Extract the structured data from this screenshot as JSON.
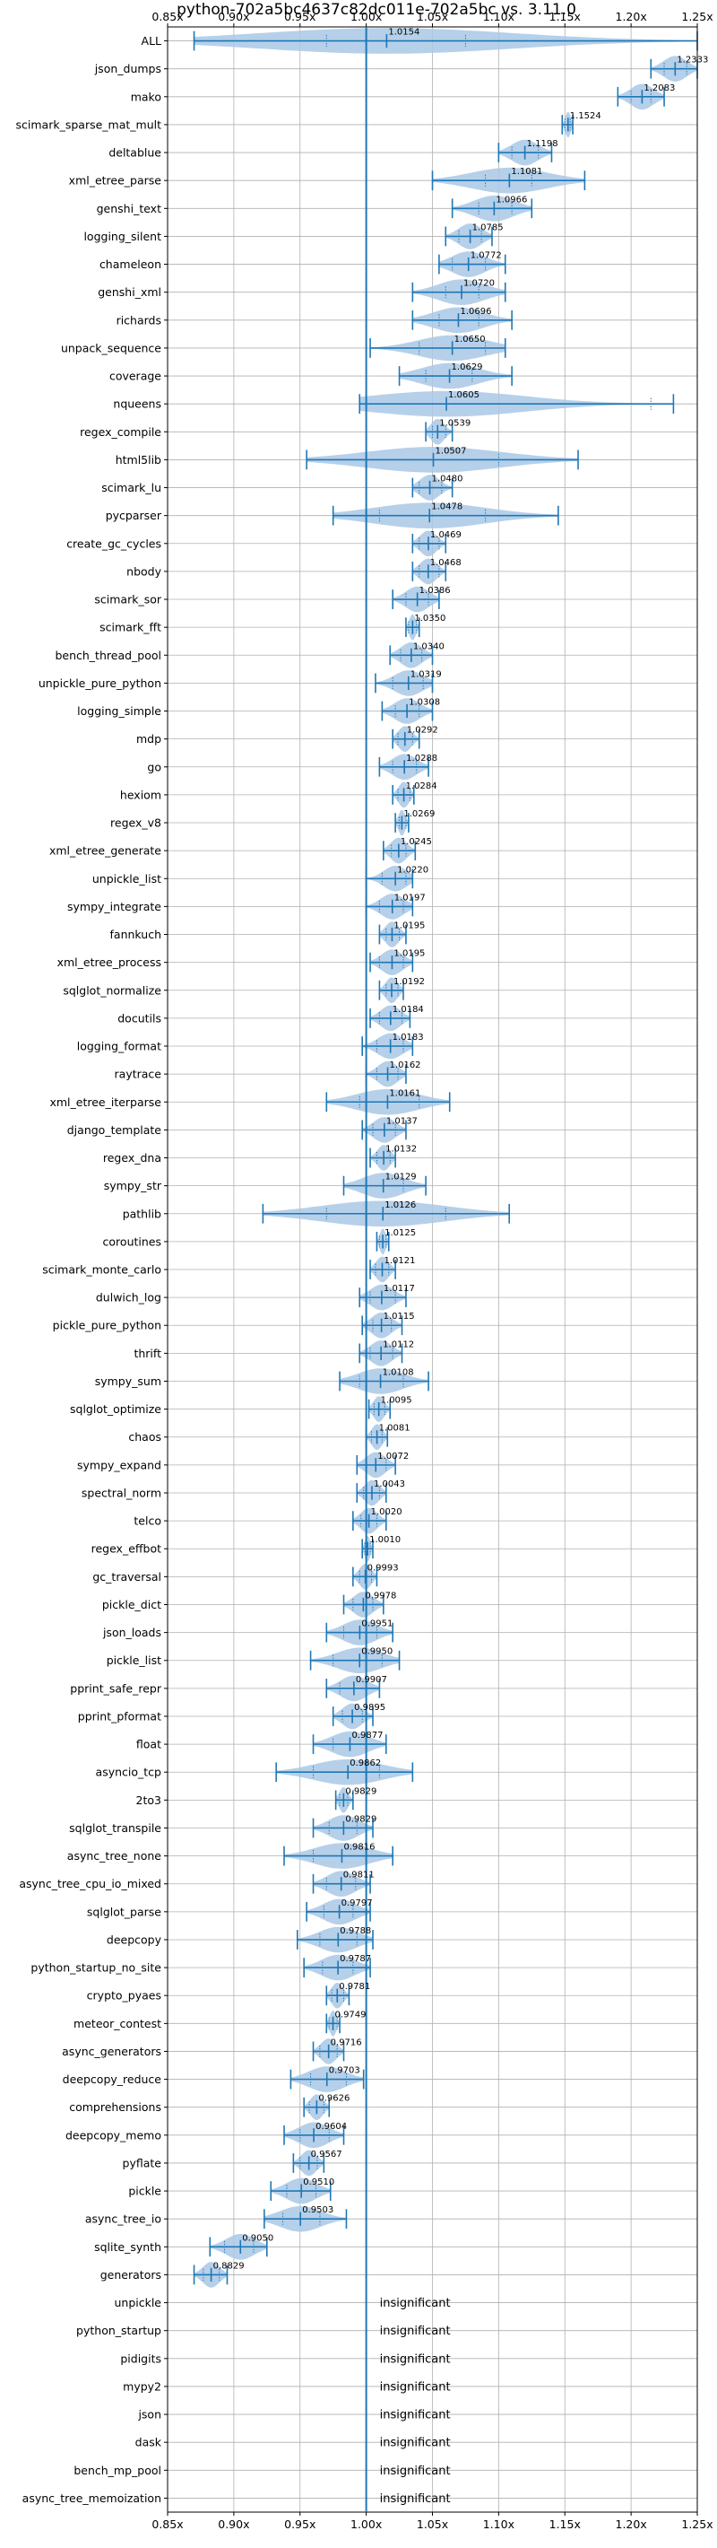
{
  "chart_data": {
    "type": "violin",
    "title": "python-702a5bc4637c82dc011e-702a5bc vs. 3.11.0",
    "xlim": [
      0.85,
      1.25
    ],
    "x_ticks": [
      "0.85x",
      "0.90x",
      "0.95x",
      "1.00x",
      "1.05x",
      "1.10x",
      "1.15x",
      "1.20x",
      "1.25x"
    ],
    "x_tick_values": [
      0.85,
      0.9,
      0.95,
      1.0,
      1.05,
      1.1,
      1.15,
      1.2,
      1.25
    ],
    "reference_line": 1.0,
    "grid": true,
    "color": "#1f77b4",
    "violin_color": "#a9c8e6",
    "insignificant_label": "insignificant",
    "benchmarks": [
      {
        "name": "ALL",
        "label": "1.0154",
        "value": 1.0154,
        "min": 0.87,
        "max": 1.25,
        "q1": 0.97,
        "q3": 1.075
      },
      {
        "name": "json_dumps",
        "label": "1.2333",
        "value": 1.2333,
        "min": 1.215,
        "max": 1.25,
        "q1": 1.225,
        "q3": 1.242
      },
      {
        "name": "mako",
        "label": "1.2083",
        "value": 1.2083,
        "min": 1.19,
        "max": 1.225,
        "q1": 1.2,
        "q3": 1.215
      },
      {
        "name": "scimark_sparse_mat_mult",
        "label": "1.1524",
        "value": 1.1524,
        "min": 1.148,
        "max": 1.156,
        "q1": 1.15,
        "q3": 1.154
      },
      {
        "name": "deltablue",
        "label": "1.1198",
        "value": 1.1198,
        "min": 1.1,
        "max": 1.14,
        "q1": 1.11,
        "q3": 1.13
      },
      {
        "name": "xml_etree_parse",
        "label": "1.1081",
        "value": 1.1081,
        "min": 1.05,
        "max": 1.165,
        "q1": 1.09,
        "q3": 1.125
      },
      {
        "name": "genshi_text",
        "label": "1.0966",
        "value": 1.0966,
        "min": 1.065,
        "max": 1.125,
        "q1": 1.085,
        "q3": 1.11
      },
      {
        "name": "logging_silent",
        "label": "1.0785",
        "value": 1.0785,
        "min": 1.06,
        "max": 1.095,
        "q1": 1.07,
        "q3": 1.087
      },
      {
        "name": "chameleon",
        "label": "1.0772",
        "value": 1.0772,
        "min": 1.055,
        "max": 1.105,
        "q1": 1.065,
        "q3": 1.09
      },
      {
        "name": "genshi_xml",
        "label": "1.0720",
        "value": 1.072,
        "min": 1.035,
        "max": 1.105,
        "q1": 1.06,
        "q3": 1.085
      },
      {
        "name": "richards",
        "label": "1.0696",
        "value": 1.0696,
        "min": 1.035,
        "max": 1.11,
        "q1": 1.055,
        "q3": 1.085
      },
      {
        "name": "unpack_sequence",
        "label": "1.0650",
        "value": 1.065,
        "min": 1.003,
        "max": 1.105,
        "q1": 1.04,
        "q3": 1.09
      },
      {
        "name": "coverage",
        "label": "1.0629",
        "value": 1.0629,
        "min": 1.025,
        "max": 1.11,
        "q1": 1.045,
        "q3": 1.08
      },
      {
        "name": "nqueens",
        "label": "1.0605",
        "value": 1.0605,
        "min": 0.995,
        "max": 1.232,
        "q1": 1.0,
        "q3": 1.215
      },
      {
        "name": "regex_compile",
        "label": "1.0539",
        "value": 1.0539,
        "min": 1.045,
        "max": 1.065,
        "q1": 1.05,
        "q3": 1.06
      },
      {
        "name": "html5lib",
        "label": "1.0507",
        "value": 1.0507,
        "min": 0.955,
        "max": 1.16,
        "q1": 1.0,
        "q3": 1.1
      },
      {
        "name": "scimark_lu",
        "label": "1.0480",
        "value": 1.048,
        "min": 1.035,
        "max": 1.065,
        "q1": 1.04,
        "q3": 1.057
      },
      {
        "name": "pycparser",
        "label": "1.0478",
        "value": 1.0478,
        "min": 0.975,
        "max": 1.145,
        "q1": 1.01,
        "q3": 1.09
      },
      {
        "name": "create_gc_cycles",
        "label": "1.0469",
        "value": 1.0469,
        "min": 1.035,
        "max": 1.06,
        "q1": 1.04,
        "q3": 1.055
      },
      {
        "name": "nbody",
        "label": "1.0468",
        "value": 1.0468,
        "min": 1.035,
        "max": 1.06,
        "q1": 1.04,
        "q3": 1.055
      },
      {
        "name": "scimark_sor",
        "label": "1.0386",
        "value": 1.0386,
        "min": 1.02,
        "max": 1.055,
        "q1": 1.03,
        "q3": 1.047
      },
      {
        "name": "scimark_fft",
        "label": "1.0350",
        "value": 1.035,
        "min": 1.03,
        "max": 1.04,
        "q1": 1.032,
        "q3": 1.038
      },
      {
        "name": "bench_thread_pool",
        "label": "1.0340",
        "value": 1.034,
        "min": 1.018,
        "max": 1.05,
        "q1": 1.026,
        "q3": 1.042
      },
      {
        "name": "unpickle_pure_python",
        "label": "1.0319",
        "value": 1.0319,
        "min": 1.007,
        "max": 1.05,
        "q1": 1.02,
        "q3": 1.043
      },
      {
        "name": "logging_simple",
        "label": "1.0308",
        "value": 1.0308,
        "min": 1.012,
        "max": 1.05,
        "q1": 1.022,
        "q3": 1.04
      },
      {
        "name": "mdp",
        "label": "1.0292",
        "value": 1.0292,
        "min": 1.02,
        "max": 1.04,
        "q1": 1.024,
        "q3": 1.035
      },
      {
        "name": "go",
        "label": "1.0288",
        "value": 1.0288,
        "min": 1.01,
        "max": 1.047,
        "q1": 1.02,
        "q3": 1.038
      },
      {
        "name": "hexiom",
        "label": "1.0284",
        "value": 1.0284,
        "min": 1.02,
        "max": 1.036,
        "q1": 1.024,
        "q3": 1.033
      },
      {
        "name": "regex_v8",
        "label": "1.0269",
        "value": 1.0269,
        "min": 1.022,
        "max": 1.032,
        "q1": 1.025,
        "q3": 1.03
      },
      {
        "name": "xml_etree_generate",
        "label": "1.0245",
        "value": 1.0245,
        "min": 1.013,
        "max": 1.037,
        "q1": 1.019,
        "q3": 1.03
      },
      {
        "name": "unpickle_list",
        "label": "1.0220",
        "value": 1.022,
        "min": 1.0,
        "max": 1.035,
        "q1": 1.012,
        "q3": 1.03
      },
      {
        "name": "sympy_integrate",
        "label": "1.0197",
        "value": 1.0197,
        "min": 1.0,
        "max": 1.035,
        "q1": 1.01,
        "q3": 1.028
      },
      {
        "name": "fannkuch",
        "label": "1.0195",
        "value": 1.0195,
        "min": 1.01,
        "max": 1.03,
        "q1": 1.015,
        "q3": 1.025
      },
      {
        "name": "xml_etree_process",
        "label": "1.0195",
        "value": 1.0195,
        "min": 1.003,
        "max": 1.035,
        "q1": 1.01,
        "q3": 1.028
      },
      {
        "name": "sqlglot_normalize",
        "label": "1.0192",
        "value": 1.0192,
        "min": 1.01,
        "max": 1.028,
        "q1": 1.015,
        "q3": 1.024
      },
      {
        "name": "docutils",
        "label": "1.0184",
        "value": 1.0184,
        "min": 1.003,
        "max": 1.033,
        "q1": 1.01,
        "q3": 1.027
      },
      {
        "name": "logging_format",
        "label": "1.0183",
        "value": 1.0183,
        "min": 0.997,
        "max": 1.035,
        "q1": 1.008,
        "q3": 1.028
      },
      {
        "name": "raytrace",
        "label": "1.0162",
        "value": 1.0162,
        "min": 1.0,
        "max": 1.03,
        "q1": 1.008,
        "q3": 1.024
      },
      {
        "name": "xml_etree_iterparse",
        "label": "1.0161",
        "value": 1.0161,
        "min": 0.97,
        "max": 1.063,
        "q1": 0.995,
        "q3": 1.04
      },
      {
        "name": "django_template",
        "label": "1.0137",
        "value": 1.0137,
        "min": 0.997,
        "max": 1.03,
        "q1": 1.005,
        "q3": 1.022
      },
      {
        "name": "regex_dna",
        "label": "1.0132",
        "value": 1.0132,
        "min": 1.003,
        "max": 1.022,
        "q1": 1.008,
        "q3": 1.018
      },
      {
        "name": "sympy_str",
        "label": "1.0129",
        "value": 1.0129,
        "min": 0.983,
        "max": 1.045,
        "q1": 1.0,
        "q3": 1.028
      },
      {
        "name": "pathlib",
        "label": "1.0126",
        "value": 1.0126,
        "min": 0.922,
        "max": 1.108,
        "q1": 0.97,
        "q3": 1.06
      },
      {
        "name": "coroutines",
        "label": "1.0125",
        "value": 1.0125,
        "min": 1.008,
        "max": 1.017,
        "q1": 1.01,
        "q3": 1.015
      },
      {
        "name": "scimark_monte_carlo",
        "label": "1.0121",
        "value": 1.0121,
        "min": 1.003,
        "max": 1.022,
        "q1": 1.007,
        "q3": 1.017
      },
      {
        "name": "dulwich_log",
        "label": "1.0117",
        "value": 1.0117,
        "min": 0.995,
        "max": 1.03,
        "q1": 1.003,
        "q3": 1.022
      },
      {
        "name": "pickle_pure_python",
        "label": "1.0115",
        "value": 1.0115,
        "min": 0.997,
        "max": 1.027,
        "q1": 1.005,
        "q3": 1.019
      },
      {
        "name": "thrift",
        "label": "1.0112",
        "value": 1.0112,
        "min": 0.995,
        "max": 1.027,
        "q1": 1.003,
        "q3": 1.02
      },
      {
        "name": "sympy_sum",
        "label": "1.0108",
        "value": 1.0108,
        "min": 0.98,
        "max": 1.047,
        "q1": 0.995,
        "q3": 1.028
      },
      {
        "name": "sqlglot_optimize",
        "label": "1.0095",
        "value": 1.0095,
        "min": 1.002,
        "max": 1.018,
        "q1": 1.006,
        "q3": 1.014
      },
      {
        "name": "chaos",
        "label": "1.0081",
        "value": 1.0081,
        "min": 1.0,
        "max": 1.016,
        "q1": 1.004,
        "q3": 1.012
      },
      {
        "name": "sympy_expand",
        "label": "1.0072",
        "value": 1.0072,
        "min": 0.993,
        "max": 1.022,
        "q1": 1.0,
        "q3": 1.015
      },
      {
        "name": "spectral_norm",
        "label": "1.0043",
        "value": 1.0043,
        "min": 0.993,
        "max": 1.015,
        "q1": 0.998,
        "q3": 1.01
      },
      {
        "name": "telco",
        "label": "1.0020",
        "value": 1.002,
        "min": 0.99,
        "max": 1.015,
        "q1": 0.996,
        "q3": 1.008
      },
      {
        "name": "regex_effbot",
        "label": "1.0010",
        "value": 1.001,
        "min": 0.997,
        "max": 1.005,
        "q1": 0.999,
        "q3": 1.003
      },
      {
        "name": "gc_traversal",
        "label": "0.9993",
        "value": 0.9993,
        "min": 0.99,
        "max": 1.008,
        "q1": 0.995,
        "q3": 1.004
      },
      {
        "name": "pickle_dict",
        "label": "0.9978",
        "value": 0.9978,
        "min": 0.983,
        "max": 1.013,
        "q1": 0.99,
        "q3": 1.005
      },
      {
        "name": "json_loads",
        "label": "0.9951",
        "value": 0.9951,
        "min": 0.97,
        "max": 1.02,
        "q1": 0.983,
        "q3": 1.008
      },
      {
        "name": "pickle_list",
        "label": "0.9950",
        "value": 0.995,
        "min": 0.958,
        "max": 1.025,
        "q1": 0.975,
        "q3": 1.012
      },
      {
        "name": "pprint_safe_repr",
        "label": "0.9907",
        "value": 0.9907,
        "min": 0.97,
        "max": 1.01,
        "q1": 0.98,
        "q3": 1.0
      },
      {
        "name": "pprint_pformat",
        "label": "0.9895",
        "value": 0.9895,
        "min": 0.975,
        "max": 1.005,
        "q1": 0.982,
        "q3": 0.997
      },
      {
        "name": "float",
        "label": "0.9877",
        "value": 0.9877,
        "min": 0.96,
        "max": 1.015,
        "q1": 0.975,
        "q3": 1.0
      },
      {
        "name": "asyncio_tcp",
        "label": "0.9862",
        "value": 0.9862,
        "min": 0.932,
        "max": 1.035,
        "q1": 0.96,
        "q3": 1.01
      },
      {
        "name": "2to3",
        "label": "0.9829",
        "value": 0.9829,
        "min": 0.977,
        "max": 0.99,
        "q1": 0.98,
        "q3": 0.986
      },
      {
        "name": "sqlglot_transpile",
        "label": "0.9829",
        "value": 0.9829,
        "min": 0.96,
        "max": 1.005,
        "q1": 0.972,
        "q3": 0.993
      },
      {
        "name": "async_tree_none",
        "label": "0.9816",
        "value": 0.9816,
        "min": 0.938,
        "max": 1.02,
        "q1": 0.96,
        "q3": 1.0
      },
      {
        "name": "async_tree_cpu_io_mixed",
        "label": "0.9811",
        "value": 0.9811,
        "min": 0.96,
        "max": 1.003,
        "q1": 0.97,
        "q3": 0.992
      },
      {
        "name": "sqlglot_parse",
        "label": "0.9797",
        "value": 0.9797,
        "min": 0.955,
        "max": 1.003,
        "q1": 0.968,
        "q3": 0.99
      },
      {
        "name": "deepcopy",
        "label": "0.9788",
        "value": 0.9788,
        "min": 0.948,
        "max": 1.005,
        "q1": 0.965,
        "q3": 0.993
      },
      {
        "name": "python_startup_no_site",
        "label": "0.9787",
        "value": 0.9787,
        "min": 0.953,
        "max": 1.003,
        "q1": 0.967,
        "q3": 0.99
      },
      {
        "name": "crypto_pyaes",
        "label": "0.9781",
        "value": 0.9781,
        "min": 0.97,
        "max": 0.987,
        "q1": 0.974,
        "q3": 0.983
      },
      {
        "name": "meteor_contest",
        "label": "0.9749",
        "value": 0.9749,
        "min": 0.97,
        "max": 0.98,
        "q1": 0.972,
        "q3": 0.978
      },
      {
        "name": "async_generators",
        "label": "0.9716",
        "value": 0.9716,
        "min": 0.96,
        "max": 0.983,
        "q1": 0.965,
        "q3": 0.978
      },
      {
        "name": "deepcopy_reduce",
        "label": "0.9703",
        "value": 0.9703,
        "min": 0.943,
        "max": 0.998,
        "q1": 0.958,
        "q3": 0.985
      },
      {
        "name": "comprehensions",
        "label": "0.9626",
        "value": 0.9626,
        "min": 0.953,
        "max": 0.972,
        "q1": 0.957,
        "q3": 0.968
      },
      {
        "name": "deepcopy_memo",
        "label": "0.9604",
        "value": 0.9604,
        "min": 0.938,
        "max": 0.983,
        "q1": 0.95,
        "q3": 0.972
      },
      {
        "name": "pyflate",
        "label": "0.9567",
        "value": 0.9567,
        "min": 0.945,
        "max": 0.968,
        "q1": 0.95,
        "q3": 0.963
      },
      {
        "name": "pickle",
        "label": "0.9510",
        "value": 0.951,
        "min": 0.928,
        "max": 0.973,
        "q1": 0.94,
        "q3": 0.962
      },
      {
        "name": "async_tree_io",
        "label": "0.9503",
        "value": 0.9503,
        "min": 0.923,
        "max": 0.985,
        "q1": 0.937,
        "q3": 0.965
      },
      {
        "name": "sqlite_synth",
        "label": "0.9050",
        "value": 0.905,
        "min": 0.882,
        "max": 0.925,
        "q1": 0.893,
        "q3": 0.915
      },
      {
        "name": "generators",
        "label": "0.8829",
        "value": 0.8829,
        "min": 0.87,
        "max": 0.895,
        "q1": 0.877,
        "q3": 0.889
      },
      {
        "name": "unpickle",
        "insignificant": true
      },
      {
        "name": "python_startup",
        "insignificant": true
      },
      {
        "name": "pidigits",
        "insignificant": true
      },
      {
        "name": "mypy2",
        "insignificant": true
      },
      {
        "name": "json",
        "insignificant": true
      },
      {
        "name": "dask",
        "insignificant": true
      },
      {
        "name": "bench_mp_pool",
        "insignificant": true
      },
      {
        "name": "async_tree_memoization",
        "insignificant": true
      }
    ]
  }
}
